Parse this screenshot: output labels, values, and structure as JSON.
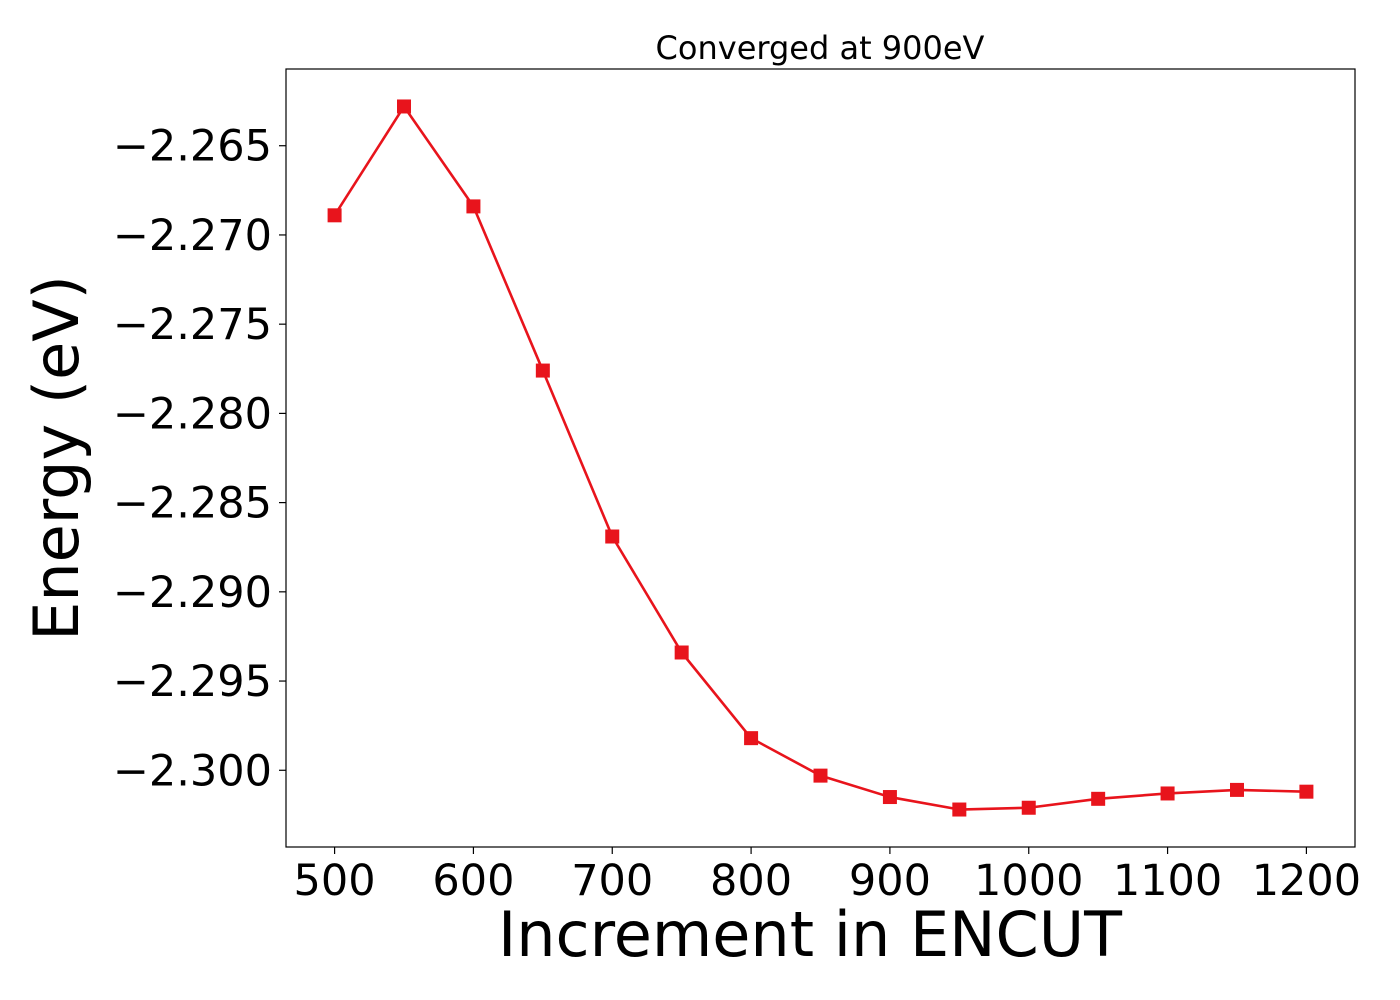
{
  "chart_data": {
    "type": "line",
    "title": "Converged at 900eV",
    "xlabel": "Increment in ENCUT",
    "ylabel": "Energy (eV)",
    "xlim": [
      465,
      1235
    ],
    "ylim": [
      -2.3043,
      -2.2607
    ],
    "xticks": [
      500,
      600,
      700,
      800,
      900,
      1000,
      1100,
      1200
    ],
    "xtick_labels": [
      "500",
      "600",
      "700",
      "800",
      "900",
      "1000",
      "1100",
      "1200"
    ],
    "yticks": [
      -2.265,
      -2.27,
      -2.275,
      -2.28,
      -2.285,
      -2.29,
      -2.295,
      -2.3
    ],
    "ytick_labels": [
      "−2.265",
      "−2.270",
      "−2.275",
      "−2.280",
      "−2.285",
      "−2.290",
      "−2.295",
      "−2.300"
    ],
    "grid": false,
    "legend": "none",
    "series": [
      {
        "color": "#e8141c",
        "marker": "square",
        "x": [
          500,
          550,
          600,
          650,
          700,
          750,
          800,
          850,
          900,
          950,
          1000,
          1050,
          1100,
          1150,
          1200
        ],
        "y": [
          -2.2689,
          -2.2628,
          -2.2684,
          -2.2776,
          -2.2869,
          -2.2934,
          -2.2982,
          -2.3003,
          -2.3015,
          -2.3022,
          -2.3021,
          -2.3016,
          -2.3013,
          -2.3011,
          -2.3012
        ]
      }
    ]
  }
}
